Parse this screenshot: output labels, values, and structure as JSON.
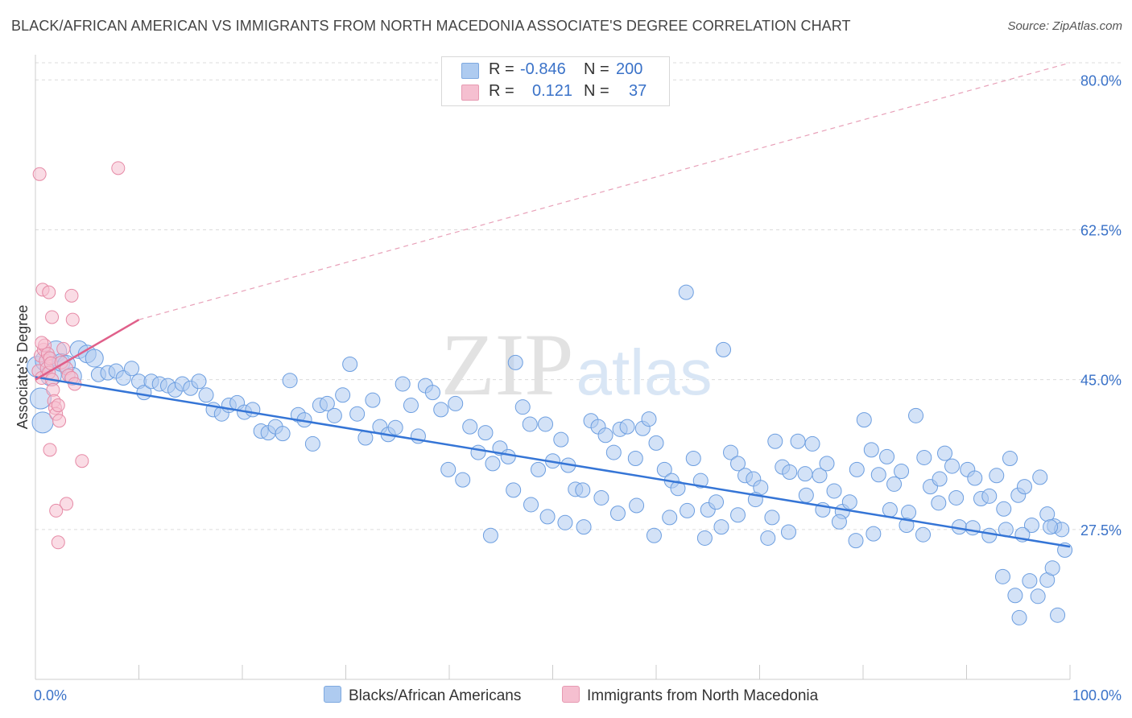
{
  "title": "BLACK/AFRICAN AMERICAN VS IMMIGRANTS FROM NORTH MACEDONIA ASSOCIATE'S DEGREE CORRELATION CHART",
  "source": "Source: ZipAtlas.com",
  "watermark": {
    "zip": "ZIP",
    "atlas": "atlas"
  },
  "legend_top": {
    "rows": [
      {
        "r_label": "R =",
        "r_value": "-0.846",
        "n_label": "N =",
        "n_value": "200",
        "color": "#aecbf0"
      },
      {
        "r_label": "R =",
        "r_value": "0.121",
        "n_label": "N =",
        "n_value": "37",
        "color": "#f5bfd0"
      }
    ]
  },
  "chart_data": {
    "type": "scatter",
    "title": "BLACK/AFRICAN AMERICAN VS IMMIGRANTS FROM NORTH MACEDONIA ASSOCIATE'S DEGREE CORRELATION CHART",
    "xlabel": "",
    "ylabel": "Associate's Degree",
    "xlim": [
      0,
      100
    ],
    "ylim": [
      10,
      82
    ],
    "x_tick_labels": [
      "0.0%",
      "100.0%"
    ],
    "y_ticks": [
      27.5,
      45.0,
      62.5,
      80.0
    ],
    "y_tick_labels": [
      "27.5%",
      "45.0%",
      "62.5%",
      "80.0%"
    ],
    "grid": true,
    "legend_position": "bottom",
    "series": [
      {
        "name": "Blacks/African Americans",
        "color": "#aecbf0",
        "stroke": "#6c9ee0",
        "trend": {
          "x": [
            0,
            100
          ],
          "y": [
            45.3,
            25.5
          ]
        },
        "points": [
          [
            0.2,
            46.5
          ],
          [
            0.5,
            42.8
          ],
          [
            0.7,
            40.0
          ],
          [
            1.0,
            47.2
          ],
          [
            1.5,
            45.5
          ],
          [
            2.0,
            48.3
          ],
          [
            2.5,
            47.0
          ],
          [
            3.0,
            46.8
          ],
          [
            3.6,
            45.4
          ],
          [
            4.2,
            48.5
          ],
          [
            5.0,
            48.0
          ],
          [
            5.7,
            47.5
          ],
          [
            6.1,
            45.6
          ],
          [
            7.0,
            45.8
          ],
          [
            7.8,
            46.0
          ],
          [
            8.5,
            45.2
          ],
          [
            9.3,
            46.3
          ],
          [
            10.0,
            44.8
          ],
          [
            10.5,
            43.5
          ],
          [
            11.2,
            44.8
          ],
          [
            12.0,
            44.5
          ],
          [
            12.8,
            44.3
          ],
          [
            13.5,
            43.8
          ],
          [
            14.2,
            44.5
          ],
          [
            15.0,
            44.0
          ],
          [
            15.8,
            44.8
          ],
          [
            16.5,
            43.2
          ],
          [
            17.2,
            41.5
          ],
          [
            18.0,
            41.0
          ],
          [
            18.7,
            42.0
          ],
          [
            19.5,
            42.3
          ],
          [
            20.2,
            41.2
          ],
          [
            21.0,
            41.5
          ],
          [
            21.8,
            39.0
          ],
          [
            22.5,
            38.8
          ],
          [
            23.2,
            39.5
          ],
          [
            23.9,
            38.7
          ],
          [
            24.6,
            44.9
          ],
          [
            25.4,
            40.9
          ],
          [
            26.0,
            40.3
          ],
          [
            26.8,
            37.5
          ],
          [
            27.5,
            42.0
          ],
          [
            28.2,
            42.2
          ],
          [
            28.9,
            40.8
          ],
          [
            29.7,
            43.2
          ],
          [
            30.4,
            46.8
          ],
          [
            31.1,
            41.0
          ],
          [
            31.9,
            38.2
          ],
          [
            32.6,
            42.6
          ],
          [
            33.3,
            39.5
          ],
          [
            34.1,
            38.6
          ],
          [
            34.8,
            39.4
          ],
          [
            35.5,
            44.5
          ],
          [
            36.3,
            42.0
          ],
          [
            37.0,
            38.4
          ],
          [
            37.7,
            44.3
          ],
          [
            38.4,
            43.5
          ],
          [
            39.2,
            41.5
          ],
          [
            39.9,
            34.5
          ],
          [
            40.6,
            42.2
          ],
          [
            41.3,
            33.3
          ],
          [
            42.0,
            39.5
          ],
          [
            42.8,
            36.5
          ],
          [
            43.5,
            38.8
          ],
          [
            44.2,
            35.2
          ],
          [
            44.9,
            37.0
          ],
          [
            45.7,
            36.0
          ],
          [
            46.4,
            47.0
          ],
          [
            47.1,
            41.8
          ],
          [
            47.8,
            39.8
          ],
          [
            48.6,
            34.5
          ],
          [
            49.3,
            39.8
          ],
          [
            50.0,
            35.5
          ],
          [
            50.8,
            38.0
          ],
          [
            51.5,
            35.0
          ],
          [
            52.2,
            32.2
          ],
          [
            52.9,
            32.1
          ],
          [
            53.7,
            40.2
          ],
          [
            54.4,
            39.5
          ],
          [
            55.1,
            38.5
          ],
          [
            55.9,
            36.5
          ],
          [
            56.5,
            39.2
          ],
          [
            57.2,
            39.5
          ],
          [
            58.0,
            35.8
          ],
          [
            58.7,
            39.3
          ],
          [
            59.3,
            40.4
          ],
          [
            60.0,
            37.6
          ],
          [
            60.8,
            34.5
          ],
          [
            61.5,
            33.2
          ],
          [
            62.1,
            32.3
          ],
          [
            62.9,
            55.2
          ],
          [
            63.6,
            35.8
          ],
          [
            64.3,
            33.2
          ],
          [
            65.0,
            29.8
          ],
          [
            65.8,
            30.7
          ],
          [
            66.5,
            48.5
          ],
          [
            67.2,
            36.5
          ],
          [
            67.9,
            35.2
          ],
          [
            68.6,
            33.8
          ],
          [
            69.4,
            33.4
          ],
          [
            70.1,
            32.4
          ],
          [
            70.8,
            26.5
          ],
          [
            71.5,
            37.8
          ],
          [
            72.2,
            34.8
          ],
          [
            72.9,
            34.2
          ],
          [
            73.7,
            37.8
          ],
          [
            74.4,
            34.0
          ],
          [
            75.1,
            37.5
          ],
          [
            75.8,
            33.8
          ],
          [
            76.5,
            35.2
          ],
          [
            77.2,
            32.0
          ],
          [
            78.0,
            29.6
          ],
          [
            78.7,
            30.7
          ],
          [
            79.4,
            34.5
          ],
          [
            80.1,
            40.3
          ],
          [
            80.8,
            36.8
          ],
          [
            81.5,
            33.9
          ],
          [
            82.3,
            36.0
          ],
          [
            83.0,
            32.8
          ],
          [
            83.7,
            34.3
          ],
          [
            84.4,
            29.5
          ],
          [
            85.1,
            40.8
          ],
          [
            85.9,
            35.9
          ],
          [
            86.5,
            32.5
          ],
          [
            87.3,
            30.6
          ],
          [
            87.9,
            36.4
          ],
          [
            88.6,
            34.9
          ],
          [
            89.3,
            27.8
          ],
          [
            90.1,
            34.5
          ],
          [
            90.8,
            33.5
          ],
          [
            91.4,
            31.1
          ],
          [
            92.2,
            31.4
          ],
          [
            92.9,
            33.8
          ],
          [
            93.6,
            29.9
          ],
          [
            94.2,
            35.8
          ],
          [
            95.0,
            31.5
          ],
          [
            95.6,
            32.5
          ],
          [
            96.3,
            28.0
          ],
          [
            97.1,
            33.6
          ],
          [
            97.8,
            29.3
          ],
          [
            98.5,
            27.9
          ],
          [
            99.2,
            27.5
          ],
          [
            44.0,
            26.8
          ],
          [
            46.2,
            32.1
          ],
          [
            47.9,
            30.4
          ],
          [
            49.5,
            29.0
          ],
          [
            51.2,
            28.3
          ],
          [
            53.0,
            27.8
          ],
          [
            54.7,
            31.2
          ],
          [
            56.3,
            29.4
          ],
          [
            58.1,
            30.3
          ],
          [
            59.8,
            26.8
          ],
          [
            61.3,
            28.9
          ],
          [
            63.0,
            29.7
          ],
          [
            64.7,
            26.5
          ],
          [
            66.3,
            27.8
          ],
          [
            67.9,
            29.2
          ],
          [
            69.6,
            31.0
          ],
          [
            71.2,
            28.9
          ],
          [
            72.8,
            27.2
          ],
          [
            74.5,
            31.5
          ],
          [
            76.1,
            29.8
          ],
          [
            77.7,
            28.4
          ],
          [
            79.3,
            26.2
          ],
          [
            81.0,
            27.0
          ],
          [
            82.6,
            29.8
          ],
          [
            84.2,
            28.0
          ],
          [
            85.8,
            26.9
          ],
          [
            87.4,
            33.4
          ],
          [
            89.0,
            31.2
          ],
          [
            90.6,
            27.7
          ],
          [
            92.2,
            26.8
          ],
          [
            93.8,
            27.5
          ],
          [
            95.4,
            26.9
          ],
          [
            93.5,
            22.0
          ],
          [
            94.7,
            19.8
          ],
          [
            96.1,
            21.5
          ],
          [
            96.9,
            19.7
          ],
          [
            97.8,
            21.6
          ],
          [
            98.3,
            23.0
          ],
          [
            95.1,
            17.2
          ],
          [
            98.8,
            17.5
          ],
          [
            99.5,
            25.1
          ],
          [
            98.1,
            27.8
          ]
        ]
      },
      {
        "name": "Immigrants from North Macedonia",
        "color": "#f5bfd0",
        "stroke": "#e68aa6",
        "trend": {
          "x": [
            0,
            10
          ],
          "y": [
            45.0,
            52.0
          ],
          "dashed_extension": {
            "x": [
              10,
              100
            ],
            "y": [
              52.0,
              82.0
            ]
          }
        },
        "points": [
          [
            0.3,
            46.0
          ],
          [
            0.5,
            47.8
          ],
          [
            0.6,
            45.2
          ],
          [
            0.8,
            48.5
          ],
          [
            0.9,
            49.0
          ],
          [
            1.0,
            47.2
          ],
          [
            1.1,
            46.3
          ],
          [
            1.2,
            48.0
          ],
          [
            1.3,
            45.8
          ],
          [
            1.4,
            47.5
          ],
          [
            1.5,
            46.9
          ],
          [
            1.6,
            45.0
          ],
          [
            1.7,
            43.8
          ],
          [
            1.8,
            42.5
          ],
          [
            1.9,
            41.7
          ],
          [
            2.0,
            41.0
          ],
          [
            2.2,
            42.0
          ],
          [
            2.3,
            40.2
          ],
          [
            2.5,
            47.0
          ],
          [
            2.7,
            48.6
          ],
          [
            3.0,
            46.3
          ],
          [
            3.2,
            45.5
          ],
          [
            3.5,
            45.2
          ],
          [
            3.8,
            44.5
          ],
          [
            0.4,
            69.0
          ],
          [
            8.0,
            69.7
          ],
          [
            0.7,
            55.5
          ],
          [
            1.3,
            55.2
          ],
          [
            3.5,
            54.8
          ],
          [
            1.6,
            52.3
          ],
          [
            3.6,
            52.0
          ],
          [
            1.4,
            36.8
          ],
          [
            4.5,
            35.5
          ],
          [
            3.0,
            30.5
          ],
          [
            2.0,
            29.7
          ],
          [
            2.2,
            26.0
          ],
          [
            0.6,
            49.3
          ]
        ]
      }
    ]
  },
  "bottom_legend": [
    {
      "label": "Blacks/African Americans",
      "color": "#aecbf0"
    },
    {
      "label": "Immigrants from North Macedonia",
      "color": "#f5bfd0"
    }
  ]
}
